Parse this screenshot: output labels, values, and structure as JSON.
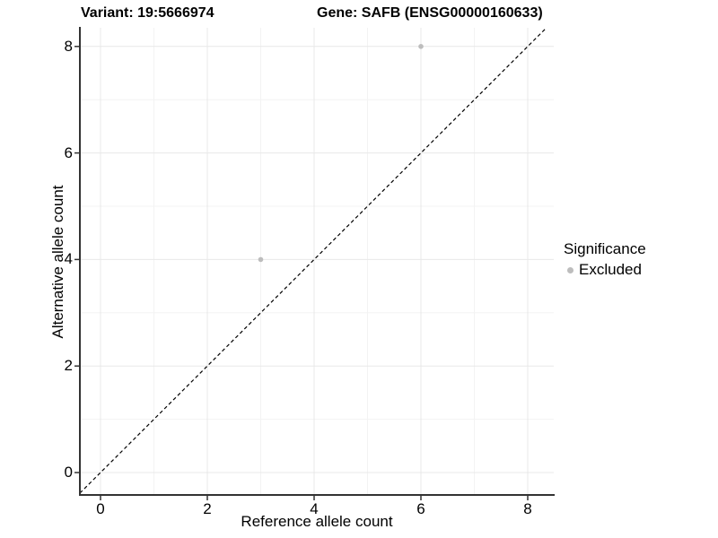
{
  "titles": {
    "left": "Variant: 19:5666974",
    "right": "Gene: SAFB (ENSG00000160633)"
  },
  "chart_data": {
    "type": "scatter",
    "title": "Variant: 19:5666974 / Gene: SAFB (ENSG00000160633)",
    "xlabel": "Reference allele count",
    "ylabel": "Alternative allele count",
    "x_ticks": [
      0,
      2,
      4,
      6,
      8
    ],
    "y_ticks": [
      0,
      2,
      4,
      6,
      8
    ],
    "xlim": [
      -0.4,
      8.5
    ],
    "ylim": [
      -0.4,
      8.4
    ],
    "grid": "major-and-minor",
    "points": [
      {
        "x": 3,
        "y": 4,
        "series": "Excluded"
      },
      {
        "x": 6,
        "y": 8,
        "series": "Excluded"
      }
    ],
    "reference_line": {
      "type": "identity y=x",
      "style": "dashed",
      "color": "#000000"
    },
    "legend": {
      "position": "right",
      "title": "Significance",
      "entries": [
        {
          "label": "Excluded",
          "color": "#bdbdbd",
          "marker": "circle"
        }
      ]
    },
    "colors": {
      "point": "#bdbdbd",
      "axis_line": "#333333",
      "grid_major": "#e8e8e8",
      "grid_minor": "#f3f3f3",
      "background": "#ffffff"
    }
  }
}
